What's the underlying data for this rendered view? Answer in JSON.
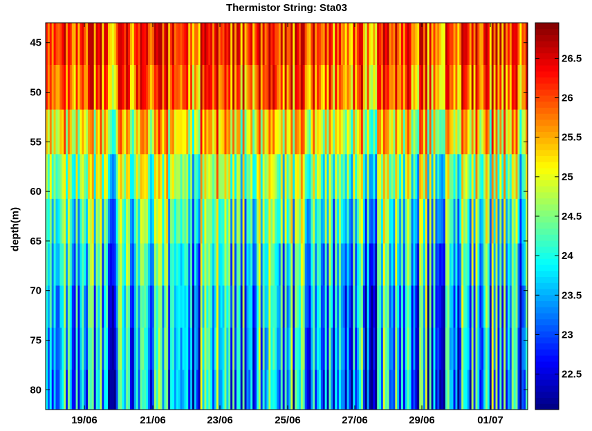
{
  "chart_data": {
    "type": "heatmap",
    "title": "Thermistor String: Sta03",
    "xlabel": "",
    "ylabel": "depth(m)",
    "x_ticks": [
      "19/06",
      "21/06",
      "23/06",
      "25/06",
      "27/06",
      "29/06",
      "01/07"
    ],
    "x_range": [
      "18/06",
      "02/07"
    ],
    "y_ticks": [
      45,
      50,
      55,
      60,
      65,
      70,
      75,
      80
    ],
    "y_range": [
      43,
      82
    ],
    "y_reversed": true,
    "depth_levels": [
      45,
      49.5,
      54,
      58.5,
      63,
      67.5,
      71.5,
      76,
      80
    ],
    "mean_temperature_profile": [
      26.0,
      25.8,
      25.1,
      24.5,
      24.1,
      23.8,
      23.6,
      23.5,
      23.4
    ],
    "colormap": "jet",
    "colorbar": {
      "range": [
        22.05,
        26.95
      ],
      "ticks": [
        22.5,
        23,
        23.5,
        24,
        24.5,
        25,
        25.5,
        26,
        26.5
      ],
      "tick_labels": [
        "22.5",
        "23",
        "23.5",
        "24",
        "24.5",
        "25",
        "25.5",
        "26",
        "26.5"
      ]
    },
    "grid": false
  }
}
